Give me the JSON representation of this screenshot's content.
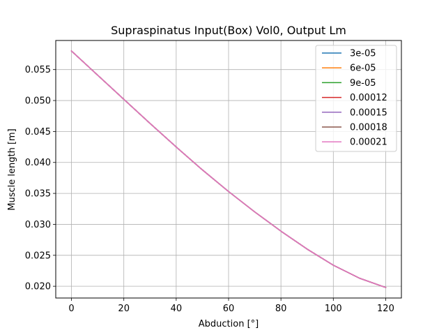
{
  "chart_data": {
    "type": "line",
    "title": "Supraspinatus Input(Box) Vol0, Output Lm",
    "xlabel": "Abduction [°]",
    "ylabel": "Muscle length [m]",
    "xlim": [
      -6,
      126
    ],
    "ylim": [
      0.0181,
      0.0597
    ],
    "xticks": [
      0,
      20,
      40,
      60,
      80,
      100,
      120
    ],
    "yticks": [
      0.02,
      0.025,
      0.03,
      0.035,
      0.04,
      0.045,
      0.05,
      0.055
    ],
    "ytick_labels": [
      "0.020",
      "0.025",
      "0.030",
      "0.035",
      "0.040",
      "0.045",
      "0.050",
      "0.055"
    ],
    "grid": true,
    "legend_position": "top-right",
    "x": [
      0,
      10,
      20,
      30,
      40,
      50,
      60,
      70,
      80,
      90,
      100,
      110,
      120
    ],
    "series": [
      {
        "name": "3e-05",
        "color": "#1f77b4",
        "values": [
          0.058,
          0.0541,
          0.0502,
          0.0463,
          0.0425,
          0.0388,
          0.0353,
          0.032,
          0.0289,
          0.026,
          0.0234,
          0.0213,
          0.0198
        ]
      },
      {
        "name": "6e-05",
        "color": "#ff7f0e",
        "values": [
          0.058,
          0.0541,
          0.0502,
          0.0463,
          0.0425,
          0.0388,
          0.0353,
          0.032,
          0.0289,
          0.026,
          0.0234,
          0.0213,
          0.0198
        ]
      },
      {
        "name": "9e-05",
        "color": "#2ca02c",
        "values": [
          0.058,
          0.0541,
          0.0502,
          0.0463,
          0.0425,
          0.0388,
          0.0353,
          0.032,
          0.0289,
          0.026,
          0.0234,
          0.0213,
          0.0198
        ]
      },
      {
        "name": "0.00012",
        "color": "#d62728",
        "values": [
          0.058,
          0.0541,
          0.0502,
          0.0463,
          0.0425,
          0.0388,
          0.0353,
          0.032,
          0.0289,
          0.026,
          0.0234,
          0.0213,
          0.0198
        ]
      },
      {
        "name": "0.00015",
        "color": "#9467bd",
        "values": [
          0.058,
          0.0541,
          0.0502,
          0.0463,
          0.0425,
          0.0388,
          0.0353,
          0.032,
          0.0289,
          0.026,
          0.0234,
          0.0213,
          0.0198
        ]
      },
      {
        "name": "0.00018",
        "color": "#8c564b",
        "values": [
          0.058,
          0.0541,
          0.0502,
          0.0463,
          0.0425,
          0.0388,
          0.0353,
          0.032,
          0.0289,
          0.026,
          0.0234,
          0.0213,
          0.0198
        ]
      },
      {
        "name": "0.00021",
        "color": "#e377c2",
        "values": [
          0.058,
          0.0541,
          0.0502,
          0.0463,
          0.0425,
          0.0388,
          0.0353,
          0.032,
          0.0289,
          0.026,
          0.0234,
          0.0213,
          0.0198
        ]
      }
    ]
  }
}
